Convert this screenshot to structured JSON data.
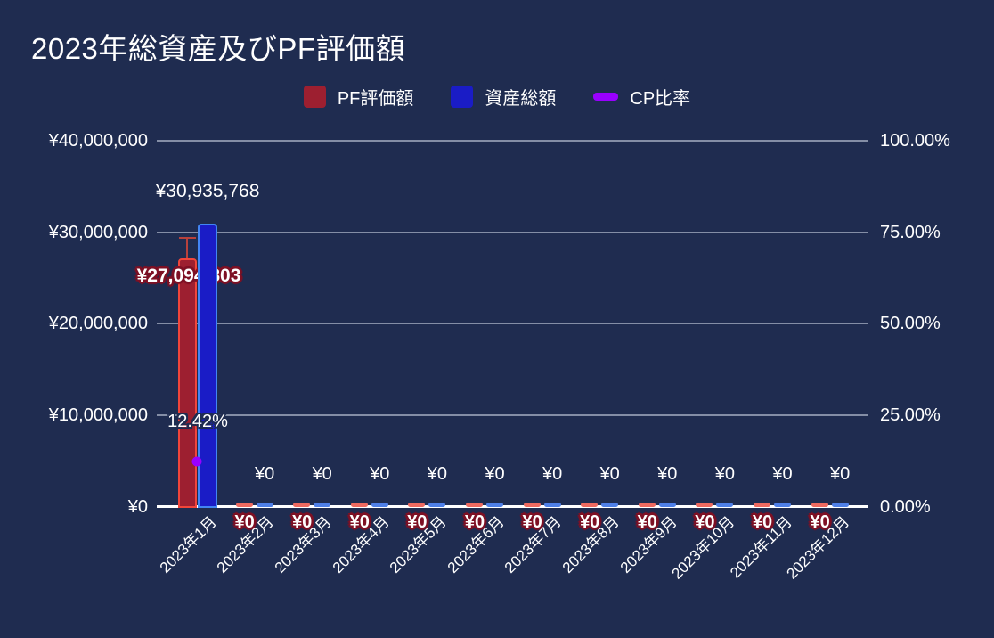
{
  "title": "2023年総資産及びPF評価額",
  "legend": [
    {
      "label": "PF評価額",
      "swatch": "square",
      "color": "#9d1f30"
    },
    {
      "label": "資産総額",
      "swatch": "square",
      "color": "#1a1cc6"
    },
    {
      "label": "CP比率",
      "swatch": "dash",
      "color": "#9900ff"
    }
  ],
  "axes": {
    "left": {
      "ticks": [
        "¥40,000,000",
        "¥30,000,000",
        "¥20,000,000",
        "¥10,000,000",
        "¥0"
      ],
      "tick_values": [
        40000000,
        30000000,
        20000000,
        10000000,
        0
      ]
    },
    "right": {
      "ticks": [
        "100.00%",
        "75.00%",
        "50.00%",
        "25.00%",
        "0.00%"
      ],
      "tick_values": [
        100,
        75,
        50,
        25,
        0
      ]
    }
  },
  "colors": {
    "background": "#1f2c50",
    "gridline": "#848ea6",
    "axis_line": "#ffffff",
    "pf_fill": "#9d1f30",
    "pf_border": "#f1453a",
    "pf_stub": "#ee6a60",
    "asset_fill": "#1a1cc6",
    "asset_border": "#4285f4",
    "asset_stub": "#4f80e8",
    "cp_point": "#9900ff",
    "whisker": "#b8413c",
    "label_outline_red": "#7e1024"
  },
  "chart_data": {
    "type": "combo",
    "subtypes": {
      "PF評価額": "bar",
      "資産総額": "bar",
      "CP比率": "point"
    },
    "categories": [
      "2023年1月",
      "2023年2月",
      "2023年3月",
      "2023年4月",
      "2023年5月",
      "2023年6月",
      "2023年7月",
      "2023年8月",
      "2023年9月",
      "2023年10月",
      "2023年11月",
      "2023年12月"
    ],
    "left_axis": {
      "min": 0,
      "max": 40000000,
      "gridline_values": [
        40000000,
        30000000,
        20000000,
        10000000
      ]
    },
    "right_axis": {
      "min": 0,
      "max": 100
    },
    "legend_position": "top",
    "series": [
      {
        "name": "PF評価額",
        "type": "bar",
        "axis": "left",
        "values": [
          27094803,
          0,
          0,
          0,
          0,
          0,
          0,
          0,
          0,
          0,
          0,
          0
        ],
        "labels": [
          "¥27,094,803",
          "¥0",
          "¥0",
          "¥0",
          "¥0",
          "¥0",
          "¥0",
          "¥0",
          "¥0",
          "¥0",
          "¥0",
          "¥0"
        ]
      },
      {
        "name": "資産総額",
        "type": "bar",
        "axis": "left",
        "values": [
          30935768,
          0,
          0,
          0,
          0,
          0,
          0,
          0,
          0,
          0,
          0,
          0
        ],
        "labels": [
          "¥30,935,768",
          "¥0",
          "¥0",
          "¥0",
          "¥0",
          "¥0",
          "¥0",
          "¥0",
          "¥0",
          "¥0",
          "¥0",
          "¥0"
        ]
      },
      {
        "name": "CP比率",
        "type": "point",
        "axis": "right",
        "values": [
          12.42,
          null,
          null,
          null,
          null,
          null,
          null,
          null,
          null,
          null,
          null,
          null
        ],
        "labels": [
          "12.42%",
          null,
          null,
          null,
          null,
          null,
          null,
          null,
          null,
          null,
          null,
          null
        ]
      }
    ],
    "annotations": {
      "whisker": {
        "series": "PF評価額",
        "category_index": 0,
        "from_value": 27094803,
        "to_value": 29520000
      }
    }
  }
}
